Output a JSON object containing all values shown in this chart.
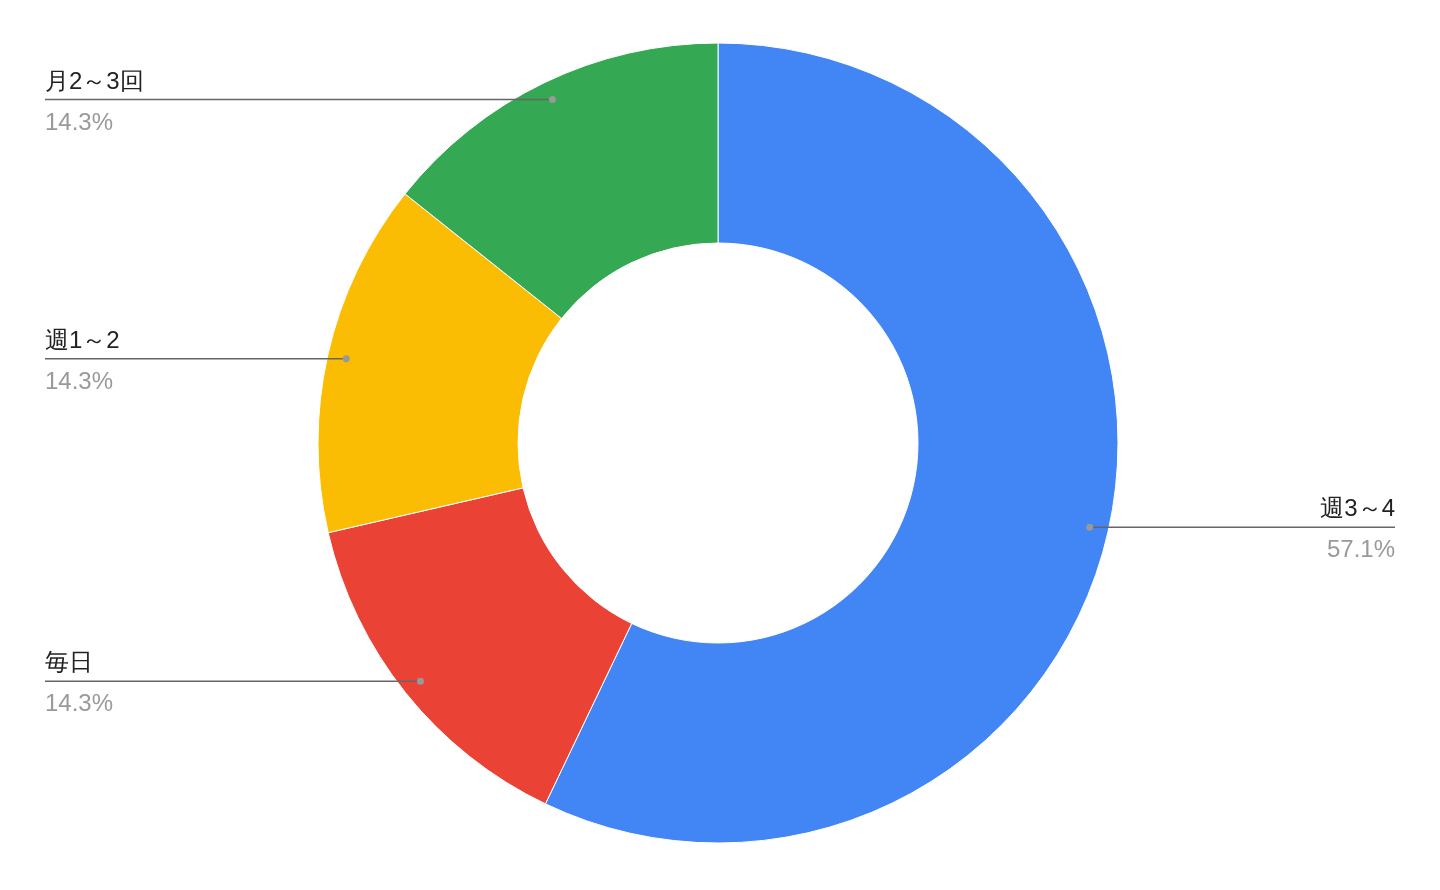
{
  "chart_data": {
    "type": "donut",
    "categories": [
      "週3～4",
      "毎日",
      "週1～2",
      "月2～3回"
    ],
    "values": [
      57.1,
      14.3,
      14.3,
      14.3
    ],
    "colors": [
      "#4285f4",
      "#ea4335",
      "#fbbc04",
      "#34a853"
    ],
    "value_labels": [
      "57.1%",
      "14.3%",
      "14.3%",
      "14.3%"
    ]
  }
}
